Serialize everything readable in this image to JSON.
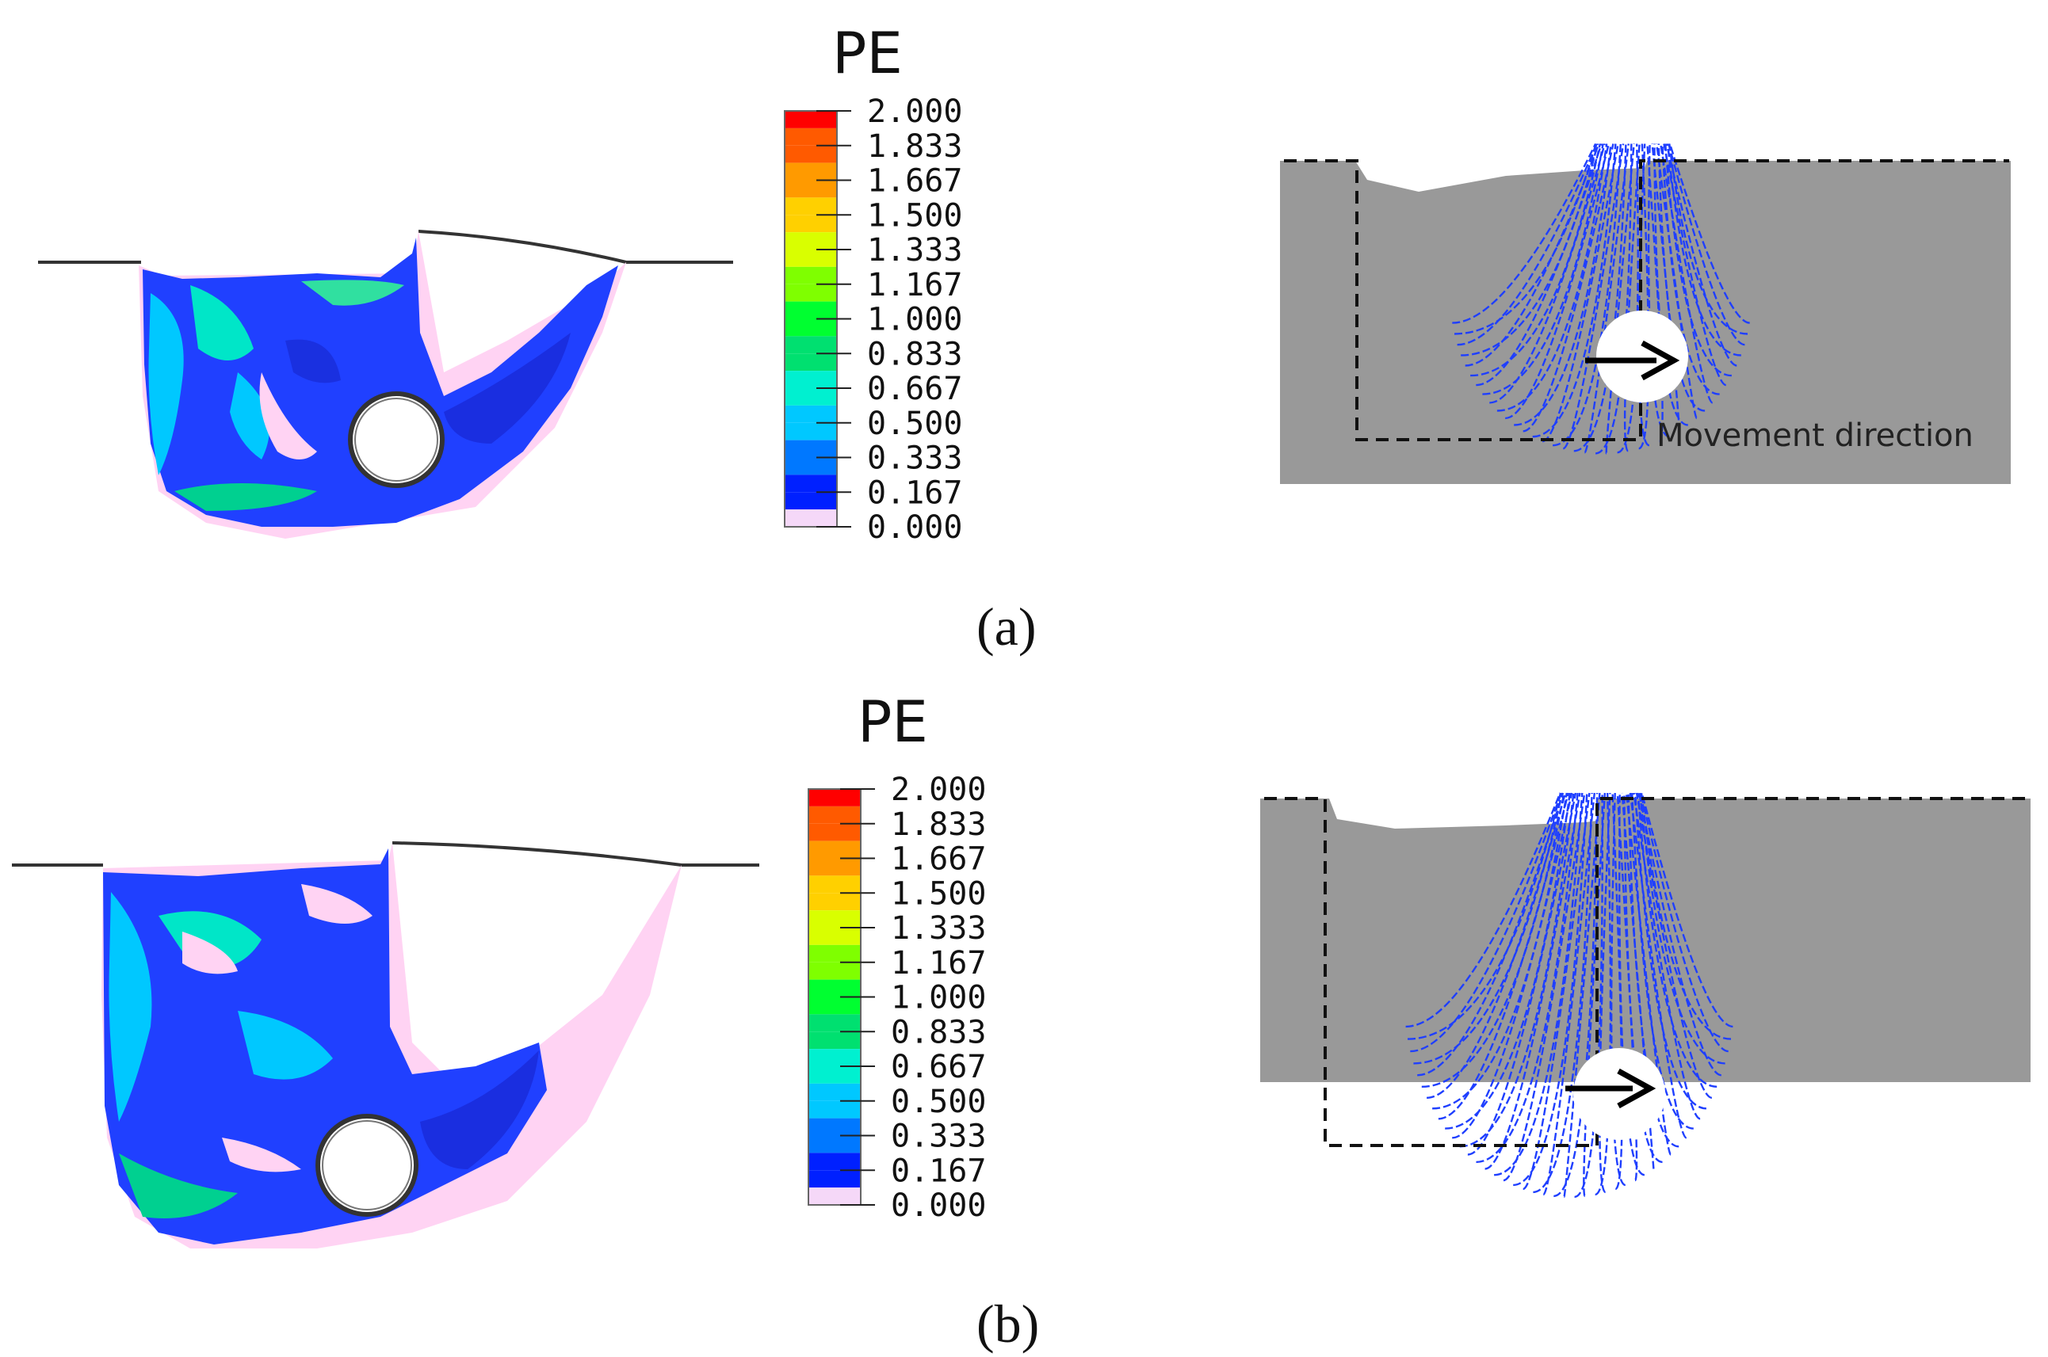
{
  "legend_title": "PE",
  "legend_values": [
    "2.000",
    "1.833",
    "1.667",
    "1.500",
    "1.333",
    "1.167",
    "1.000",
    "0.833",
    "0.667",
    "0.500",
    "0.333",
    "0.167",
    "0.000"
  ],
  "legend_colors": [
    "#ff0000",
    "#ff5a00",
    "#ff9a00",
    "#ffd000",
    "#d9ff00",
    "#7fff00",
    "#00ff30",
    "#00e070",
    "#00f0d0",
    "#00c8ff",
    "#0078ff",
    "#0020ff",
    "#e070ff"
  ],
  "colors": {
    "background": "#ffffff",
    "soil_gray": "#999999",
    "mesh_blue": "#1f3fff",
    "arrow": "#000000",
    "pale_pink": "#ffd3f3"
  },
  "panels": [
    {
      "id": "a",
      "label": "(a)",
      "movement_label": "Movement direction"
    },
    {
      "id": "b",
      "label": "(b)"
    }
  ]
}
